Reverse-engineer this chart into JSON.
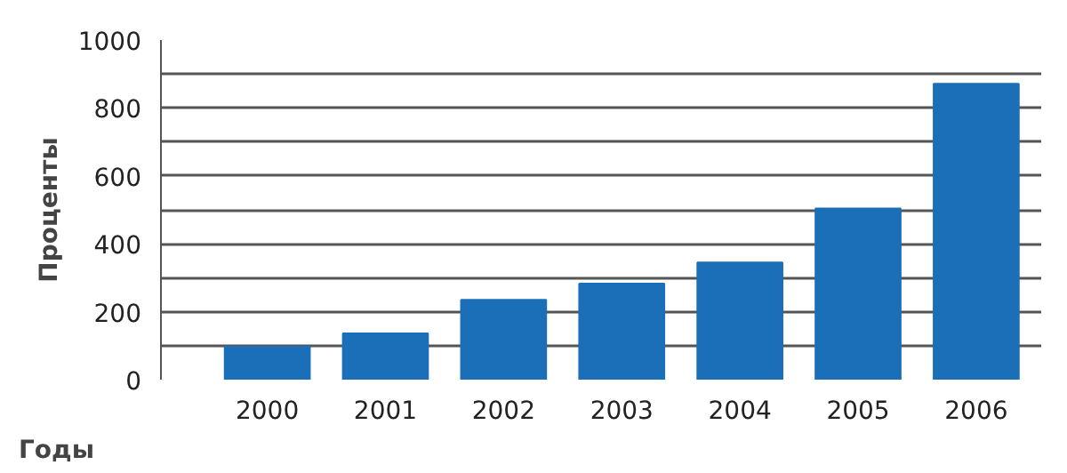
{
  "chart_data": {
    "type": "bar",
    "xlabel": "Годы",
    "ylabel": "Проценты",
    "categories": [
      "2000",
      "2001",
      "2002",
      "2003",
      "2004",
      "2005",
      "2006"
    ],
    "values": [
      97,
      136,
      235,
      283,
      345,
      504,
      871
    ],
    "color": "#1a6fb8",
    "ylim": [
      0,
      1000
    ],
    "yticks": [
      0,
      200,
      400,
      600,
      800,
      1000
    ],
    "grid": "y"
  }
}
